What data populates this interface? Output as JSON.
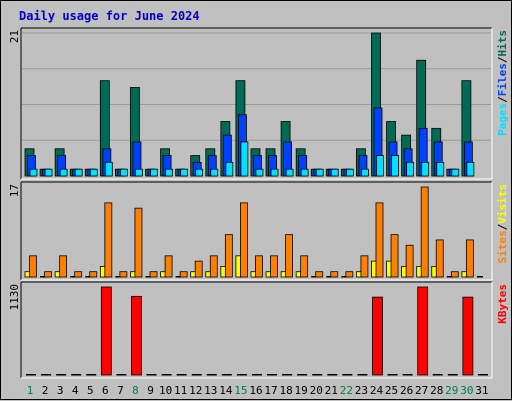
{
  "title": "Daily usage for June 2024",
  "colors": {
    "background": "#c0c0c0",
    "grid": "#9a9a9a",
    "hits": "#006b54",
    "files": "#0040ff",
    "pages": "#00e0ff",
    "visits": "#ffff00",
    "sites": "#ff8000",
    "kbytes": "#ff0000",
    "title": "#0000cc"
  },
  "chart_data": [
    {
      "type": "bar",
      "panel": "hits-files-pages",
      "y_max_label": "21",
      "ylim": [
        0,
        21
      ],
      "legend_parts": [
        "Pages",
        "Files",
        "Hits"
      ],
      "legend_separator": "/",
      "categories": [
        "1",
        "2",
        "3",
        "4",
        "5",
        "6",
        "7",
        "8",
        "9",
        "10",
        "11",
        "12",
        "13",
        "14",
        "15",
        "16",
        "17",
        "18",
        "19",
        "20",
        "21",
        "22",
        "23",
        "24",
        "25",
        "26",
        "27",
        "28",
        "29",
        "30",
        "31"
      ],
      "series": [
        {
          "name": "Hits",
          "values": [
            4,
            1,
            4,
            1,
            1,
            14,
            1,
            13,
            1,
            4,
            1,
            3,
            4,
            8,
            14,
            4,
            4,
            8,
            4,
            1,
            1,
            1,
            4,
            21,
            8,
            6,
            17,
            7,
            1,
            14,
            0
          ]
        },
        {
          "name": "Files",
          "values": [
            3,
            1,
            3,
            1,
            1,
            4,
            1,
            5,
            1,
            3,
            1,
            2,
            3,
            6,
            9,
            3,
            3,
            5,
            3,
            1,
            1,
            1,
            3,
            10,
            5,
            4,
            7,
            5,
            1,
            5,
            0
          ]
        },
        {
          "name": "Pages",
          "values": [
            1,
            1,
            1,
            1,
            1,
            2,
            1,
            1,
            1,
            1,
            1,
            1,
            1,
            2,
            5,
            1,
            1,
            1,
            1,
            1,
            1,
            1,
            1,
            3,
            3,
            2,
            2,
            2,
            1,
            2,
            0
          ]
        }
      ]
    },
    {
      "type": "bar",
      "panel": "visits-sites",
      "y_max_label": "17",
      "ylim": [
        0,
        17
      ],
      "legend_parts": [
        "Sites",
        "Visits"
      ],
      "legend_separator": "/",
      "categories": [
        "1",
        "2",
        "3",
        "4",
        "5",
        "6",
        "7",
        "8",
        "9",
        "10",
        "11",
        "12",
        "13",
        "14",
        "15",
        "16",
        "17",
        "18",
        "19",
        "20",
        "21",
        "22",
        "23",
        "24",
        "25",
        "26",
        "27",
        "28",
        "29",
        "30",
        "31"
      ],
      "series": [
        {
          "name": "Visits",
          "values": [
            1,
            0,
            1,
            0,
            0,
            2,
            0,
            1,
            0,
            1,
            0,
            1,
            1,
            2,
            4,
            1,
            1,
            1,
            1,
            0,
            0,
            0,
            1,
            3,
            3,
            2,
            2,
            2,
            0,
            1,
            0
          ]
        },
        {
          "name": "Sites",
          "values": [
            4,
            1,
            4,
            1,
            1,
            14,
            1,
            13,
            1,
            4,
            1,
            3,
            4,
            8,
            14,
            4,
            4,
            8,
            4,
            1,
            1,
            1,
            4,
            14,
            8,
            6,
            17,
            7,
            1,
            7,
            0
          ]
        }
      ]
    },
    {
      "type": "bar",
      "panel": "kbytes",
      "y_max_label": "1130",
      "ylim": [
        0,
        1130
      ],
      "legend_parts": [
        "KBytes"
      ],
      "legend_separator": "",
      "categories": [
        "1",
        "2",
        "3",
        "4",
        "5",
        "6",
        "7",
        "8",
        "9",
        "10",
        "11",
        "12",
        "13",
        "14",
        "15",
        "16",
        "17",
        "18",
        "19",
        "20",
        "21",
        "22",
        "23",
        "24",
        "25",
        "26",
        "27",
        "28",
        "29",
        "30",
        "31"
      ],
      "series": [
        {
          "name": "KBytes",
          "values": [
            0,
            0,
            0,
            0,
            0,
            1130,
            0,
            1010,
            0,
            0,
            0,
            0,
            0,
            0,
            0,
            0,
            0,
            0,
            0,
            0,
            0,
            0,
            0,
            1000,
            0,
            0,
            1130,
            0,
            0,
            1000,
            0
          ]
        }
      ]
    }
  ],
  "x_axis": {
    "labels": [
      "1",
      "2",
      "3",
      "4",
      "5",
      "6",
      "7",
      "8",
      "9",
      "10",
      "11",
      "12",
      "13",
      "14",
      "15",
      "16",
      "17",
      "18",
      "19",
      "20",
      "21",
      "22",
      "23",
      "24",
      "25",
      "26",
      "27",
      "28",
      "29",
      "30",
      "31"
    ],
    "weekend_days": [
      1,
      8,
      15,
      22,
      29,
      30
    ]
  }
}
